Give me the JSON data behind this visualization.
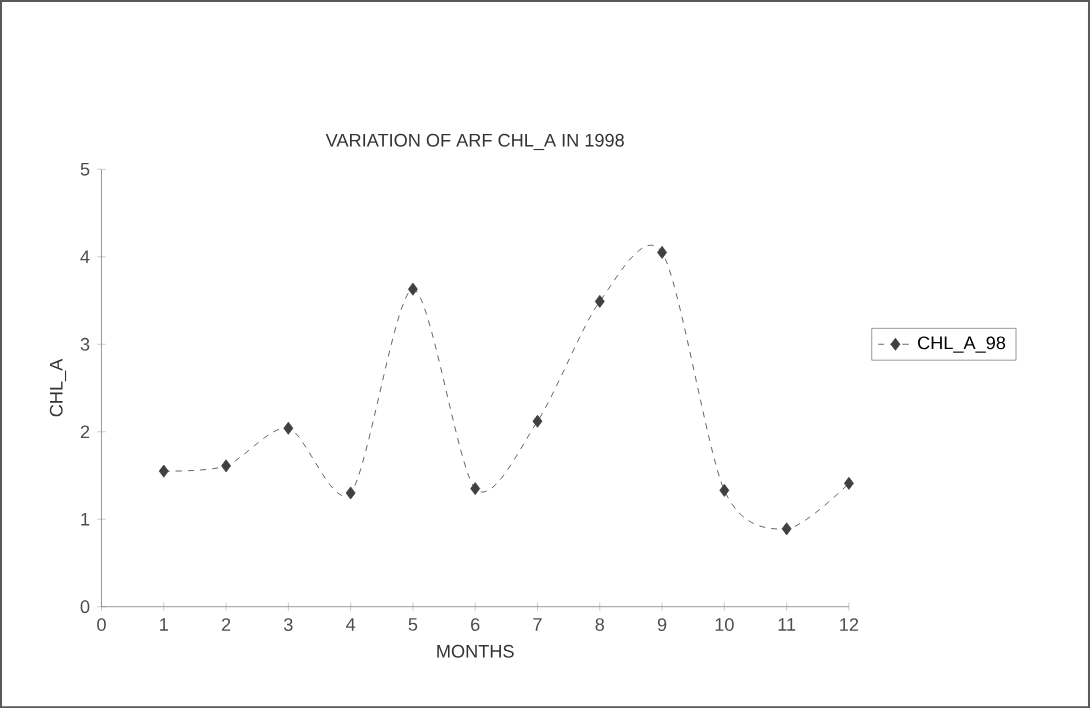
{
  "chart_data": {
    "type": "line",
    "title": "VARIATION OF ARF CHL_A IN 1998",
    "xlabel": "MONTHS",
    "ylabel": "CHL_A",
    "x": [
      1,
      2,
      3,
      4,
      5,
      6,
      7,
      8,
      9,
      10,
      11,
      12
    ],
    "series": [
      {
        "name": "CHL_A_98",
        "color": "#404040",
        "values": [
          1.55,
          1.61,
          2.04,
          1.3,
          3.63,
          1.35,
          2.12,
          3.49,
          4.05,
          1.33,
          0.89,
          1.41
        ]
      }
    ],
    "xlim": [
      0,
      12
    ],
    "xticks": [
      0,
      1,
      2,
      3,
      4,
      5,
      6,
      7,
      8,
      9,
      10,
      11,
      12
    ],
    "ylim": [
      0,
      5
    ],
    "yticks": [
      0,
      1,
      2,
      3,
      4,
      5
    ],
    "grid": false,
    "legend": "right",
    "marker": "diamond",
    "line_style": "dashed"
  }
}
